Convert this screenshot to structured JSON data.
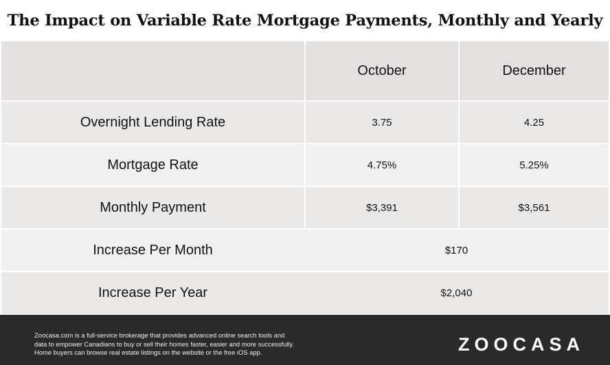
{
  "title": "The Impact on Variable Rate Mortgage Payments, Monthly and Yearly",
  "table": {
    "headers": [
      "",
      "October",
      "December"
    ],
    "rows": [
      {
        "label": "Overnight Lending Rate",
        "october": "3.75",
        "december": "4.25"
      },
      {
        "label": "Mortgage Rate",
        "october": "4.75%",
        "december": "5.25%"
      },
      {
        "label": "Monthly Payment",
        "october": "$3,391",
        "december": "$3,561"
      }
    ],
    "span_rows": [
      {
        "label": "Increase Per Month",
        "value": "$170"
      },
      {
        "label": "Increase Per Year",
        "value": "$2,040"
      }
    ]
  },
  "footer": {
    "disclaimer_lines": [
      "Zoocasa.com is a full-service brokerage that provides advanced online search tools and",
      "data to empower Canadians to buy or sell their homes faster, easier and more successfully.",
      "Home buyers can browse real estate listings on the website or the free iOS app."
    ],
    "logo": "ZOOCASA"
  },
  "colors": {
    "header_bg": "#e3e0df",
    "row_bg_a": "#ebe9e8",
    "row_bg_b": "#f1f0f0",
    "footer_bg": "#2a2a2a"
  }
}
